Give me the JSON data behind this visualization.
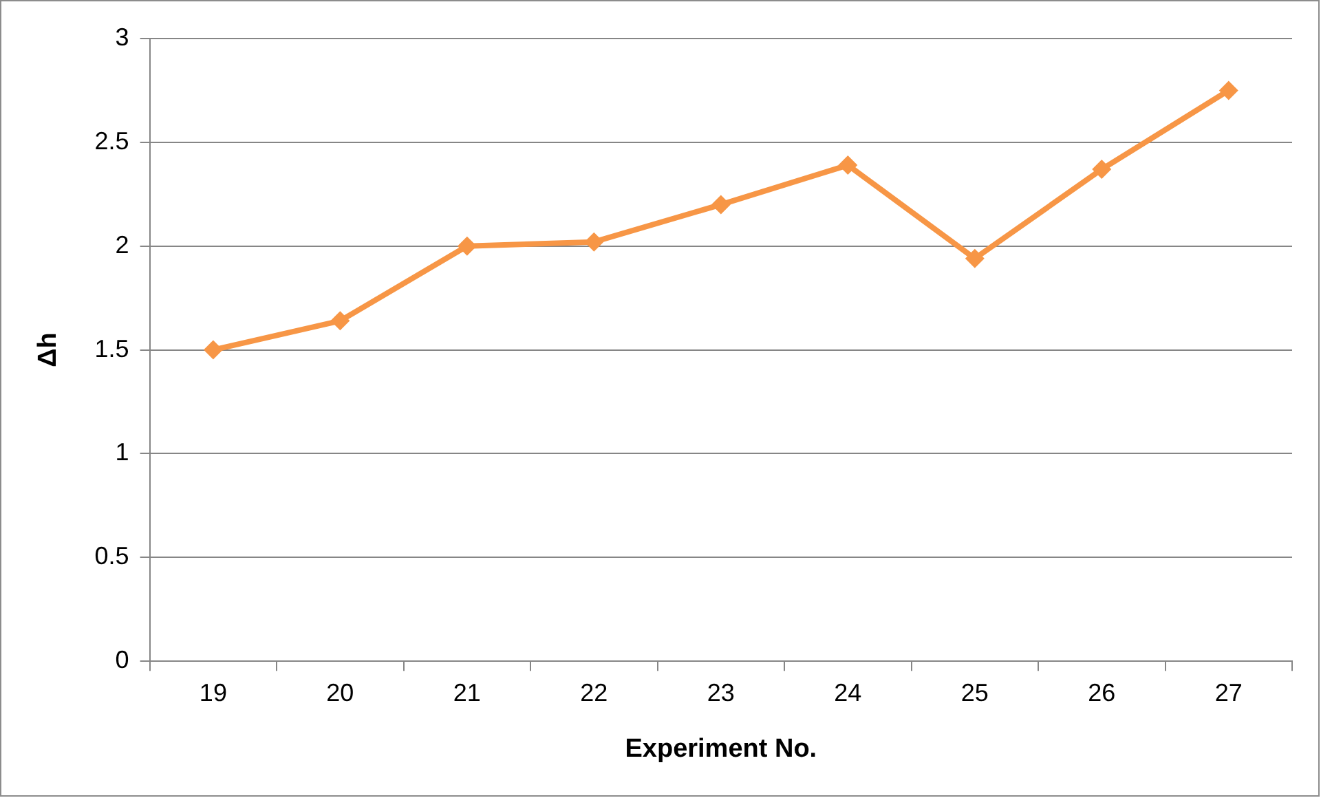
{
  "chart_data": {
    "type": "line",
    "xlabel": "Experiment No.",
    "ylabel": "Δh",
    "categories": [
      "19",
      "20",
      "21",
      "22",
      "23",
      "24",
      "25",
      "26",
      "27"
    ],
    "series": [
      {
        "color": "#f79646",
        "values": [
          1.5,
          1.64,
          2.0,
          2.02,
          2.2,
          2.39,
          1.94,
          2.37,
          2.75
        ]
      }
    ],
    "ylim": [
      0,
      3
    ],
    "yticks": [
      0,
      0.5,
      1,
      1.5,
      2,
      2.5,
      3
    ],
    "grid": "y",
    "legend": false,
    "marker": "diamond",
    "line_style": "solid"
  }
}
